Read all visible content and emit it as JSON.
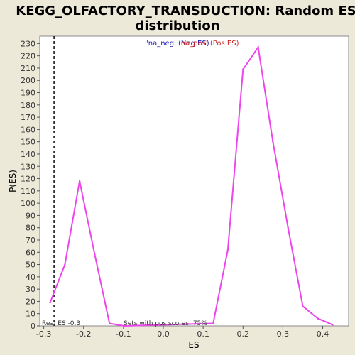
{
  "chart_data": {
    "type": "line",
    "title_line1": "KEGG_OLFACTORY_TRANSDUCTION: Random ES",
    "title_line2": "distribution",
    "xlabel": "ES",
    "ylabel": "P(ES)",
    "xlim": [
      -0.31,
      0.465
    ],
    "ylim": [
      0,
      236
    ],
    "xticks": [
      -0.3,
      -0.2,
      -0.1,
      0.0,
      0.1,
      0.2,
      0.3,
      0.4
    ],
    "xtick_labels": [
      "-0.3",
      "-0.2",
      "-0.1",
      "0.0",
      "0.1",
      "0.2",
      "0.3",
      "0.4"
    ],
    "yticks": [
      0,
      10,
      20,
      30,
      40,
      50,
      60,
      70,
      80,
      90,
      100,
      110,
      120,
      130,
      140,
      150,
      160,
      170,
      180,
      190,
      200,
      210,
      220,
      230
    ],
    "series": [
      {
        "color": "#ee44ee",
        "x": [
          -0.284,
          -0.247,
          -0.21,
          -0.172,
          -0.135,
          -0.098,
          0.125,
          0.162,
          0.2,
          0.238,
          0.275,
          0.313,
          0.35,
          0.388,
          0.425
        ],
        "y": [
          19,
          50,
          118,
          58,
          2,
          0,
          2,
          62,
          209,
          227,
          150,
          80,
          16,
          6,
          1
        ]
      }
    ],
    "real_es": -0.274,
    "legend": [
      {
        "label": "'na_neg' (Neg ES)",
        "color": "#2222bb"
      },
      {
        "label": "'na_pos' (Pos ES)",
        "color": "#cc2222"
      }
    ],
    "annotation_left": "Real ES -0.3",
    "annotation_center": "Sets with pos scores: 75%",
    "grid": false,
    "colors": {
      "background": "#ece9d8",
      "plot_background": "#ffffff",
      "line": "#ee44ee",
      "real_es_line": "#333333"
    }
  }
}
